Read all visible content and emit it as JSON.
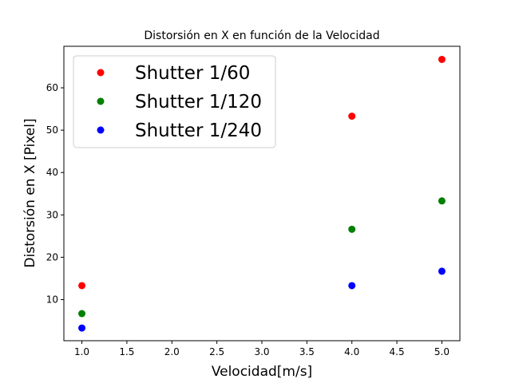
{
  "chart_data": {
    "type": "scatter",
    "title": "Distorsión en X en función de la Velocidad",
    "xlabel": "Velocidad[m/s]",
    "ylabel": "Distorsión en X [Pixel]",
    "xlim": [
      0.8,
      5.2
    ],
    "ylim": [
      0.3,
      69.8
    ],
    "xticks": [
      "1.0",
      "1.5",
      "2.0",
      "2.5",
      "3.0",
      "3.5",
      "4.0",
      "4.5",
      "5.0"
    ],
    "yticks": [
      "10",
      "20",
      "30",
      "40",
      "50",
      "60"
    ],
    "grid": false,
    "legend_position": "top-left",
    "series": [
      {
        "name": "Shutter 1/60",
        "color": "#ff0000",
        "x": [
          1,
          4,
          5
        ],
        "y": [
          13.3,
          53.3,
          66.7
        ]
      },
      {
        "name": "Shutter 1/120",
        "color": "#008000",
        "x": [
          1,
          4,
          5
        ],
        "y": [
          6.7,
          26.6,
          33.3
        ]
      },
      {
        "name": "Shutter 1/240",
        "color": "#0000ff",
        "x": [
          1,
          4,
          5
        ],
        "y": [
          3.3,
          13.3,
          16.7
        ]
      }
    ]
  }
}
